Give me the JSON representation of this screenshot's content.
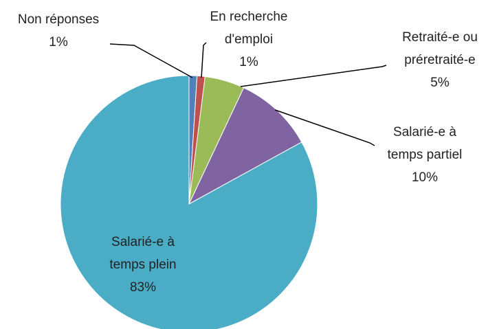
{
  "chart_data": {
    "type": "pie",
    "categories": [
      "Non réponses",
      "En recherche d'emploi",
      "Retraité-e ou préretraité-e",
      "Salarié-e à temps partiel",
      "Salarié-e à temps plein"
    ],
    "values": [
      1,
      1,
      5,
      10,
      83
    ],
    "value_labels": [
      "1%",
      "1%",
      "5%",
      "10%",
      "83%"
    ],
    "colors": [
      "#4f81bd",
      "#c0504d",
      "#9bbb59",
      "#8064a2",
      "#4bacc6"
    ]
  }
}
